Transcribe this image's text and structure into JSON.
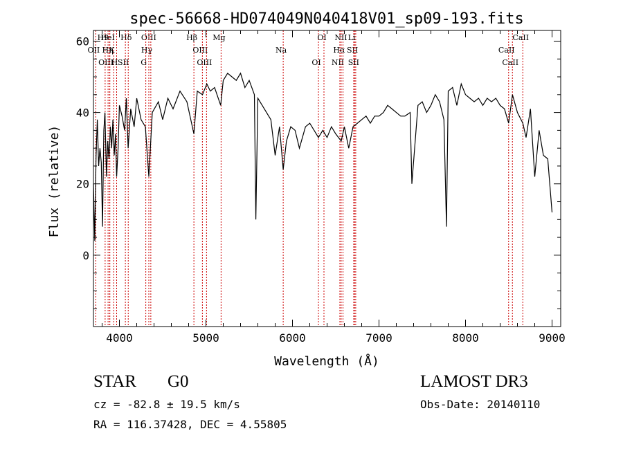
{
  "chart_data": {
    "type": "line",
    "title": "spec-56668-HD074049N040418V01_sp09-193.fits",
    "xlabel": "Wavelength (Å)",
    "ylabel": "Flux (relative)",
    "xlim": [
      3700,
      9100
    ],
    "ylim": [
      -20,
      63
    ],
    "xticks": [
      4000,
      5000,
      6000,
      7000,
      8000,
      9000
    ],
    "yticks": [
      0,
      20,
      40,
      60
    ],
    "grid": false,
    "line_color": "#000000",
    "marker_color": "#cc0000",
    "series": [
      {
        "x": [
          3700,
          3715,
          3730,
          3745,
          3760,
          3775,
          3790,
          3805,
          3820,
          3833,
          3850,
          3865,
          3880,
          3895,
          3910,
          3925,
          3940,
          3955,
          3968,
          3985,
          4000,
          4030,
          4060,
          4080,
          4101,
          4130,
          4170,
          4200,
          4250,
          4300,
          4340,
          4380,
          4450,
          4500,
          4560,
          4620,
          4700,
          4780,
          4861,
          4900,
          4960,
          5010,
          5050,
          5100,
          5170,
          5200,
          5250,
          5300,
          5350,
          5400,
          5450,
          5500,
          5560,
          5577,
          5600,
          5650,
          5700,
          5750,
          5800,
          5850,
          5893,
          5930,
          5980,
          6030,
          6080,
          6150,
          6200,
          6250,
          6300,
          6350,
          6400,
          6450,
          6500,
          6563,
          6600,
          6650,
          6700,
          6750,
          6800,
          6850,
          6900,
          6950,
          7000,
          7050,
          7100,
          7150,
          7200,
          7250,
          7300,
          7360,
          7380,
          7450,
          7500,
          7550,
          7600,
          7650,
          7700,
          7750,
          7780,
          7800,
          7850,
          7900,
          7950,
          8000,
          8050,
          8100,
          8150,
          8200,
          8250,
          8300,
          8350,
          8400,
          8450,
          8498,
          8542,
          8600,
          8662,
          8700,
          8750,
          8800,
          8850,
          8900,
          8950,
          9000
        ],
        "y": [
          20,
          4,
          28,
          38,
          25,
          30,
          26,
          8,
          35,
          40,
          22,
          32,
          27,
          36,
          30,
          38,
          28,
          34,
          22,
          30,
          42,
          39,
          35,
          44,
          30,
          41,
          36,
          44,
          38,
          36,
          22,
          40,
          43,
          38,
          44,
          41,
          46,
          43,
          34,
          46,
          45,
          48,
          46,
          47,
          42,
          49,
          51,
          50,
          49,
          51,
          47,
          49,
          45,
          10,
          44,
          42,
          40,
          38,
          28,
          36,
          24,
          32,
          36,
          35,
          30,
          36,
          37,
          35,
          33,
          35,
          33,
          36,
          34,
          32,
          36,
          30,
          36,
          37,
          38,
          39,
          37,
          39,
          39,
          40,
          42,
          41,
          40,
          39,
          39,
          40,
          20,
          42,
          43,
          40,
          42,
          45,
          43,
          38,
          8,
          46,
          47,
          42,
          48,
          45,
          44,
          43,
          44,
          42,
          44,
          43,
          44,
          42,
          41,
          37,
          45,
          40,
          37,
          33,
          41,
          22,
          35,
          28,
          27,
          12
        ]
      }
    ],
    "line_markers": [
      {
        "name": "H9",
        "x": 3835
      },
      {
        "name": "K",
        "x": 3934
      },
      {
        "name": "H",
        "x": 3968
      },
      {
        "name": "Hδ",
        "x": 4102
      },
      {
        "name": "OII",
        "x": 3727
      },
      {
        "name": "OIII",
        "x": 3869
      },
      {
        "name": "HeI",
        "x": 3889
      },
      {
        "name": "Hη",
        "x": 3889
      },
      {
        "name": "SII",
        "x": 4069
      },
      {
        "name": "OIII",
        "x": 4363
      },
      {
        "name": "Hγ",
        "x": 4340
      },
      {
        "name": "G",
        "x": 4305
      },
      {
        "name": "Hβ",
        "x": 4861
      },
      {
        "name": "OIII",
        "x": 4959
      },
      {
        "name": "OIII",
        "x": 5007
      },
      {
        "name": "Mg",
        "x": 5175
      },
      {
        "name": "Na",
        "x": 5893
      },
      {
        "name": "OI",
        "x": 6300
      },
      {
        "name": "OI",
        "x": 6364
      },
      {
        "name": "Hα",
        "x": 6563
      },
      {
        "name": "NII",
        "x": 6548
      },
      {
        "name": "NII",
        "x": 6584
      },
      {
        "name": "SII",
        "x": 6717
      },
      {
        "name": "SII",
        "x": 6731
      },
      {
        "name": "Li",
        "x": 6708
      },
      {
        "name": "CaII",
        "x": 8498
      },
      {
        "name": "CaII",
        "x": 8542
      },
      {
        "name": "CaII",
        "x": 8662
      }
    ]
  },
  "info": {
    "object_class": "STAR",
    "subclass": "G0",
    "survey": "LAMOST DR3",
    "redshift_text": "cz = -82.8 ± 19.5 km/s",
    "obs_date": "Obs-Date: 20140110",
    "coords_text": "RA = 116.37428, DEC =    4.55805"
  }
}
